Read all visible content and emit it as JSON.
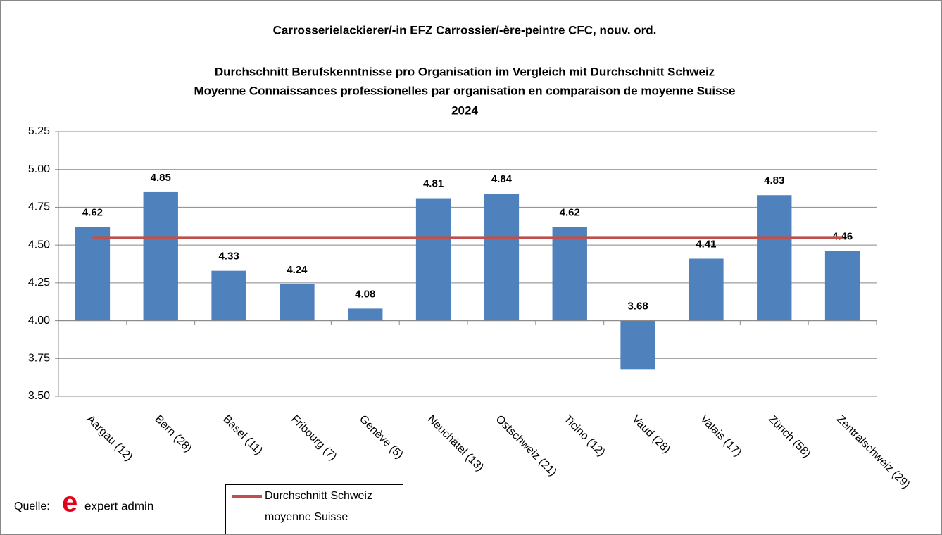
{
  "chart_data": {
    "type": "bar",
    "title_lines": [
      "Carrosserielackierer/-in EFZ   Carrossier/-ère-peintre CFC, nouv. ord.",
      "Durchschnitt Berufskenntnisse pro Organisation im Vergleich mit Durchschnitt Schweiz",
      "Moyenne Connaissances professionelles par organisation en comparaison de moyenne Suisse",
      "2024"
    ],
    "categories": [
      "Aargau (12)",
      "Bern (28)",
      "Basel (11)",
      "Fribourg (7)",
      "Genève (5)",
      "Neuchâtel (13)",
      "Ostschweiz (21)",
      "Ticino (12)",
      "Vaud (28)",
      "Valais (17)",
      "Zürich (58)",
      "Zentralschweiz (29)"
    ],
    "values": [
      4.62,
      4.85,
      4.33,
      4.24,
      4.08,
      4.81,
      4.84,
      4.62,
      3.68,
      4.41,
      4.83,
      4.46
    ],
    "color": "#4f81bd",
    "x_axis_at": 4,
    "reference": {
      "name_lines": [
        "Durchschnitt Schweiz",
        "moyenne Suisse"
      ],
      "value": 4.55,
      "color": "#c0504d"
    },
    "ylim": [
      3.5,
      5.25
    ],
    "yticks": [
      {
        "value": 3.5,
        "label": "3.50"
      },
      3.75,
      {
        "value": 4,
        "label": "4.00"
      },
      4.25,
      {
        "value": 4.5,
        "label": "4.50"
      },
      4.75,
      {
        "value": 5,
        "label": "5.00"
      },
      5.25
    ],
    "grid": true,
    "source": {
      "label": "Quelle:",
      "logo_mark": "e",
      "logo_text": "expert admin"
    }
  }
}
